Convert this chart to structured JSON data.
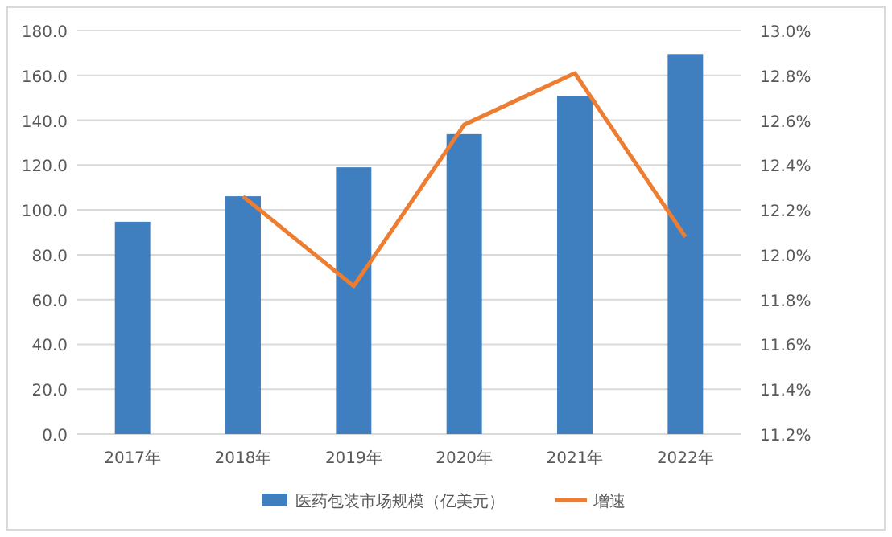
{
  "chart_data": {
    "type": "bar",
    "categories": [
      "2017年",
      "2018年",
      "2019年",
      "2020年",
      "2021年",
      "2022年"
    ],
    "series": [
      {
        "name": "医药包装市场规模（亿美元）",
        "color": "#3f7fc0",
        "values": [
          94.7,
          106.1,
          119.0,
          133.8,
          150.9,
          169.5
        ]
      },
      {
        "name": "增速",
        "type": "line",
        "axis": "y2",
        "color": "#ed7d31",
        "values": [
          null,
          12.26,
          11.86,
          12.58,
          12.81,
          12.08
        ]
      }
    ],
    "ylim": [
      0,
      180
    ],
    "yticks": [
      {
        "value": 0,
        "label": "0.0"
      },
      {
        "value": 20,
        "label": "20.0"
      },
      {
        "value": 40,
        "label": "40.0"
      },
      {
        "value": 60,
        "label": "60.0"
      },
      {
        "value": 80,
        "label": "80.0"
      },
      {
        "value": 100,
        "label": "100.0"
      },
      {
        "value": 120,
        "label": "120.0"
      },
      {
        "value": 140,
        "label": "140.0"
      },
      {
        "value": 160,
        "label": "160.0"
      },
      {
        "value": 180,
        "label": "180.0"
      }
    ],
    "y2lim": [
      11.2,
      13.0
    ],
    "y2ticks": [
      {
        "value": 11.2,
        "label": "11.2%"
      },
      {
        "value": 11.4,
        "label": "11.4%"
      },
      {
        "value": 11.6,
        "label": "11.6%"
      },
      {
        "value": 11.8,
        "label": "11.8%"
      },
      {
        "value": 12.0,
        "label": "12.0%"
      },
      {
        "value": 12.2,
        "label": "12.2%"
      },
      {
        "value": 12.4,
        "label": "12.4%"
      },
      {
        "value": 12.6,
        "label": "12.6%"
      },
      {
        "value": 12.8,
        "label": "12.8%"
      },
      {
        "value": 13.0,
        "label": "13.0%"
      }
    ],
    "grid": "y",
    "legend": "bottom",
    "marker": "none"
  }
}
